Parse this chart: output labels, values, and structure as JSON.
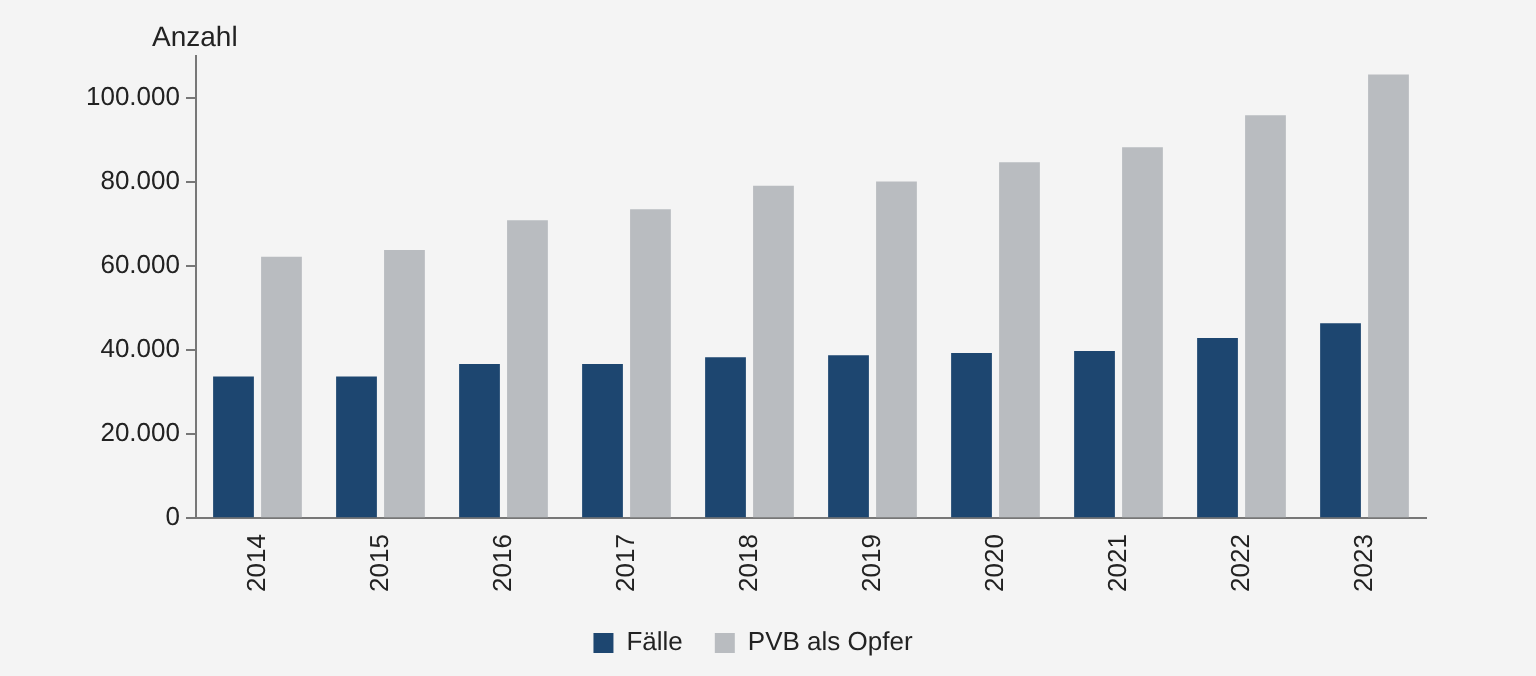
{
  "chart_data": {
    "type": "bar",
    "ylabel": "Anzahl",
    "categories": [
      "2014",
      "2015",
      "2016",
      "2017",
      "2018",
      "2019",
      "2020",
      "2021",
      "2022",
      "2023"
    ],
    "series": [
      {
        "name": "Fälle",
        "color": "#1d4670",
        "values": [
          33700,
          33700,
          36700,
          36700,
          38300,
          38800,
          39300,
          39800,
          42900,
          46400
        ]
      },
      {
        "name": "PVB als Opfer",
        "color": "#b9bcc0",
        "values": [
          62200,
          63800,
          70900,
          73500,
          79100,
          80100,
          84700,
          88300,
          95900,
          105600
        ]
      }
    ],
    "ylim": [
      0,
      110000
    ],
    "yticks": [
      {
        "value": 0,
        "label": "0"
      },
      {
        "value": 20000,
        "label": "20.000"
      },
      {
        "value": 40000,
        "label": "40.000"
      },
      {
        "value": 60000,
        "label": "60.000"
      },
      {
        "value": 80000,
        "label": "80.000"
      },
      {
        "value": 100000,
        "label": "100.000"
      }
    ],
    "grid": false,
    "legend": "bottom"
  }
}
